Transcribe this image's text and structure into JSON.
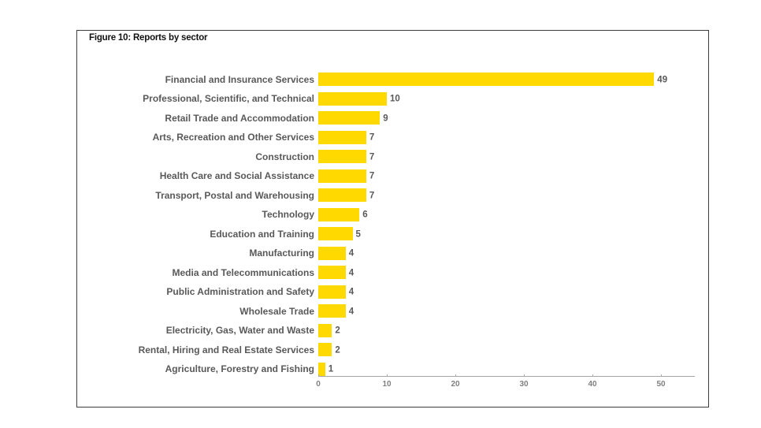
{
  "figure": {
    "title": "Figure 10: Reports by sector"
  },
  "chart_data": {
    "type": "bar",
    "orientation": "horizontal",
    "title": "Figure 10: Reports by sector",
    "categories": [
      "Financial and Insurance Services",
      "Professional, Scientific, and Technical",
      "Retail Trade and Accommodation",
      "Arts, Recreation and Other Services",
      "Construction",
      "Health Care and Social Assistance",
      "Transport, Postal and Warehousing",
      "Technology",
      "Education and Training",
      "Manufacturing",
      "Media and Telecommunications",
      "Public Administration and Safety",
      "Wholesale Trade",
      "Electricity, Gas, Water and Waste",
      "Rental, Hiring and Real Estate Services",
      "Agriculture, Forestry and Fishing"
    ],
    "values": [
      49,
      10,
      9,
      7,
      7,
      7,
      7,
      6,
      5,
      4,
      4,
      4,
      4,
      2,
      2,
      1
    ],
    "value_labels_shown": true,
    "xlabel": "",
    "ylabel": "",
    "xlim": [
      0,
      55
    ],
    "xticks": [
      "0",
      "10",
      "20",
      "30",
      "40",
      "50"
    ],
    "grid": false,
    "legend": "none",
    "colors": {
      "bar": "#FFD900",
      "category_label": "#595959",
      "value_label": "#595959",
      "axis_line": "#A6A6A6",
      "tick_label": "#7F7F7F",
      "title": "#111111",
      "figure_border": "#3D3D3D",
      "background": "#FFFFFF"
    }
  }
}
